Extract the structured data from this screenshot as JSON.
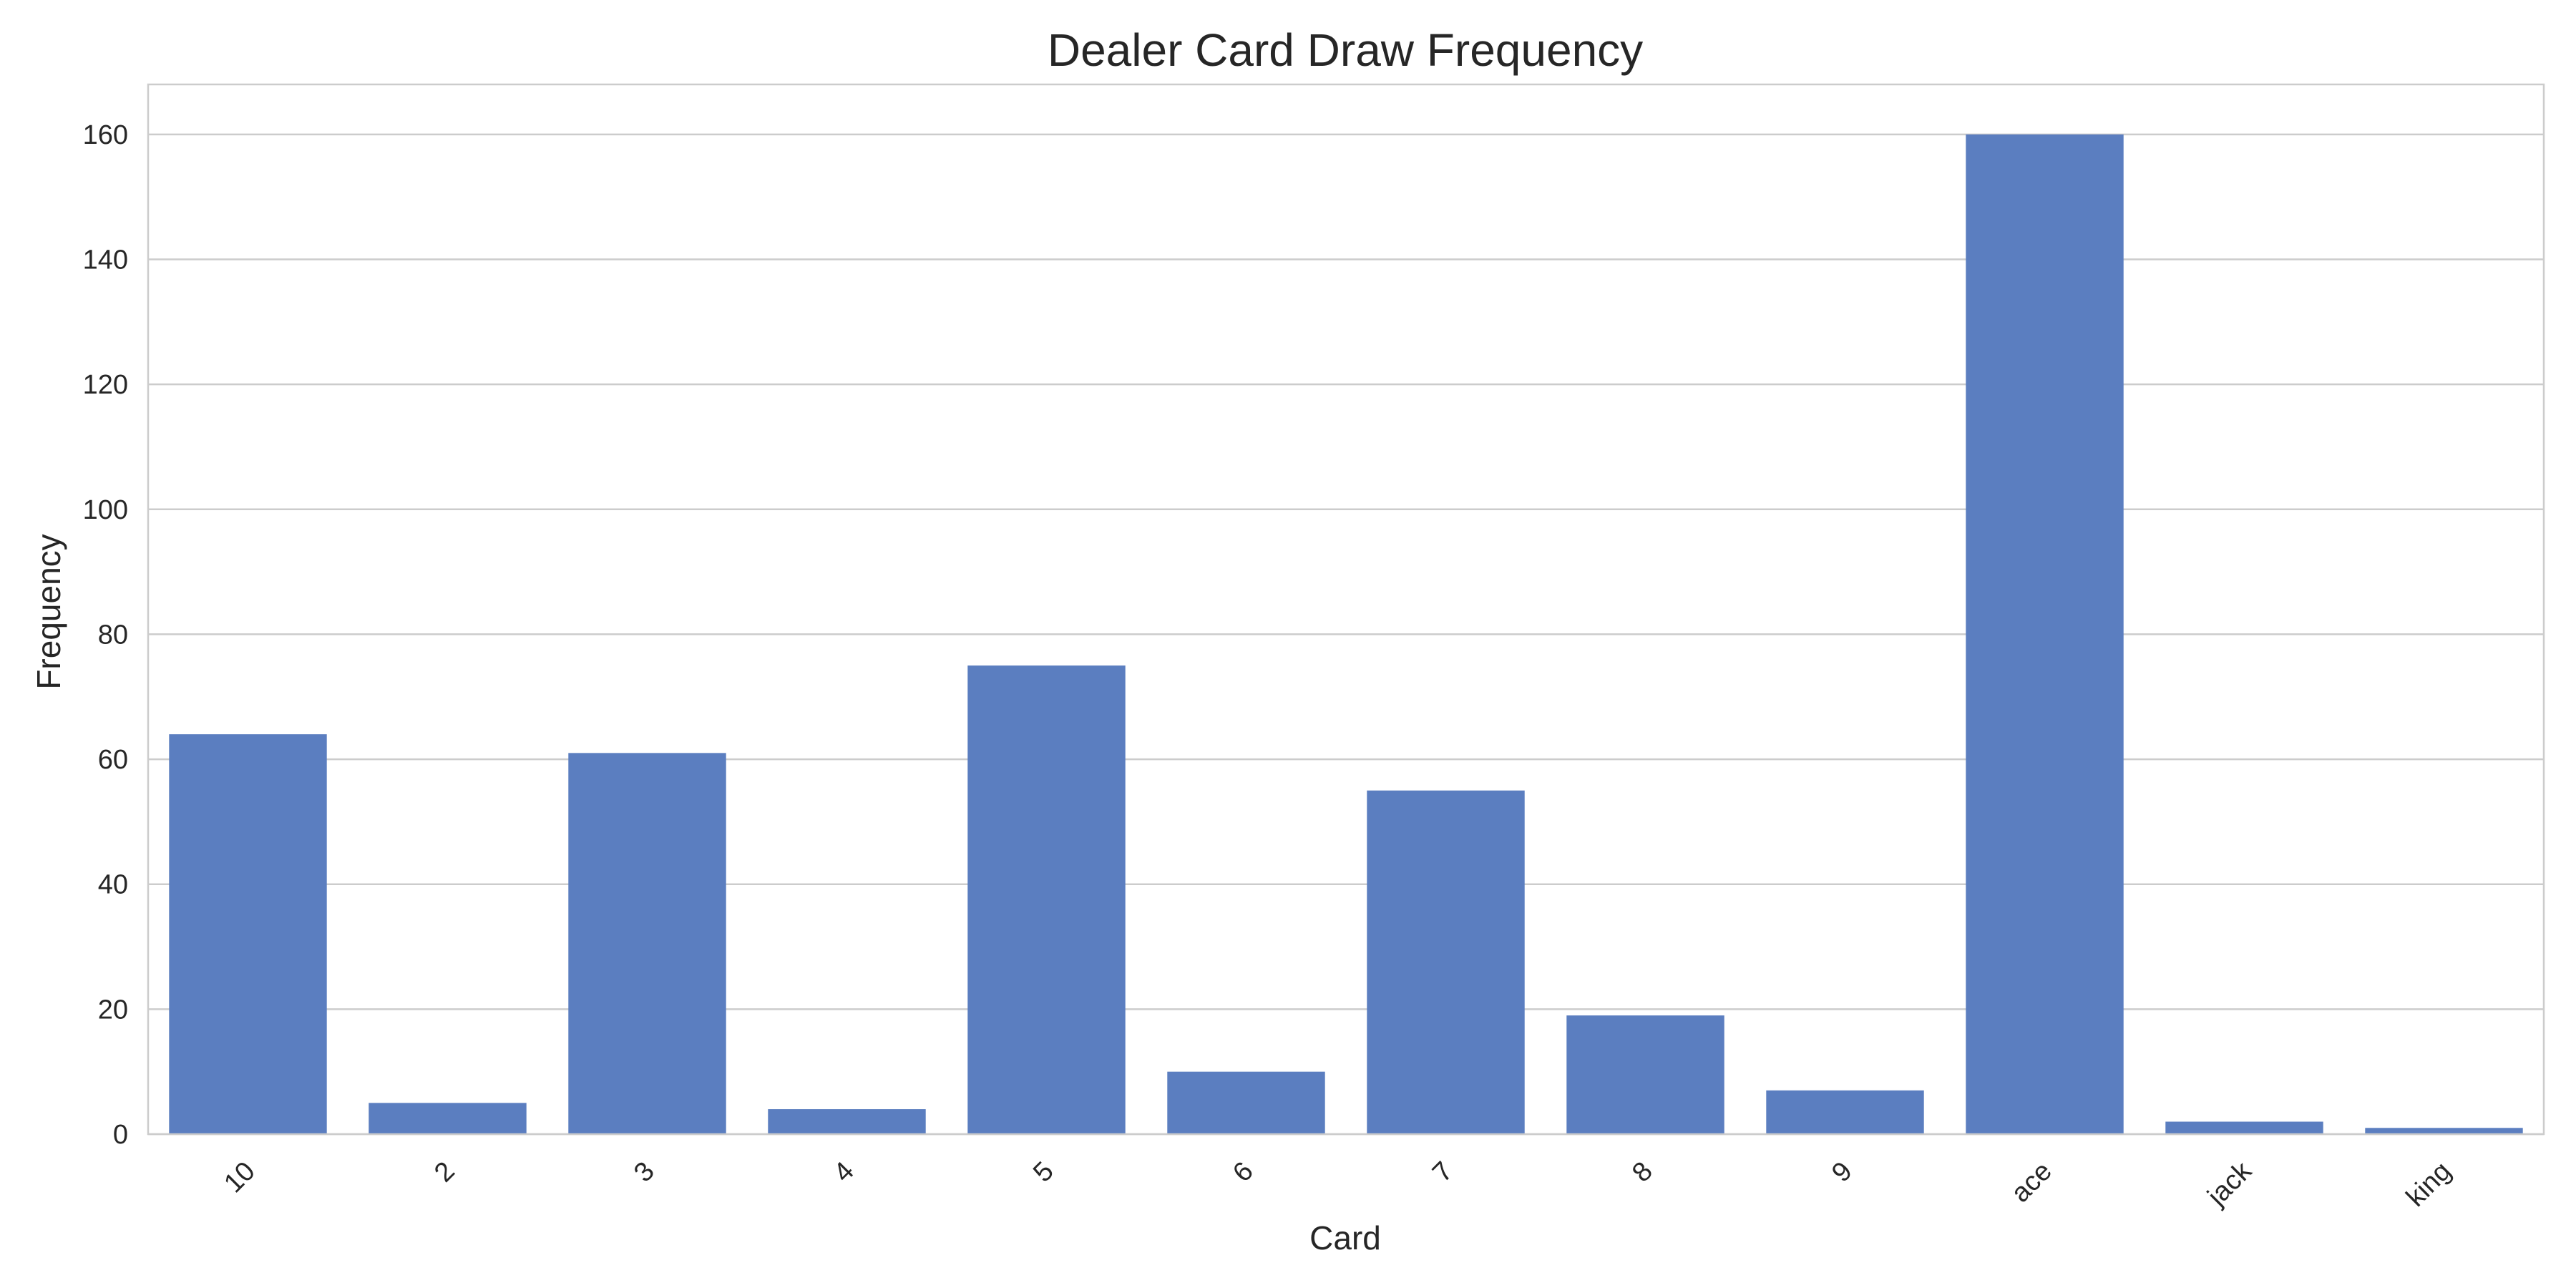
{
  "chart_data": {
    "type": "bar",
    "title": "Dealer Card Draw Frequency",
    "xlabel": "Card",
    "ylabel": "Frequency",
    "categories": [
      "10",
      "2",
      "3",
      "4",
      "5",
      "6",
      "7",
      "8",
      "9",
      "ace",
      "jack",
      "king"
    ],
    "values": [
      64,
      5,
      61,
      4,
      75,
      10,
      55,
      19,
      7,
      160,
      2,
      1
    ],
    "ylim": [
      0,
      168
    ],
    "yticks": [
      0,
      20,
      40,
      60,
      80,
      100,
      120,
      140,
      160
    ],
    "grid": true,
    "legend": "none",
    "bar_color": "#5b7ec0",
    "grid_color": "#cccccc",
    "spine_color": "#cccccc",
    "text_color": "#262626"
  }
}
